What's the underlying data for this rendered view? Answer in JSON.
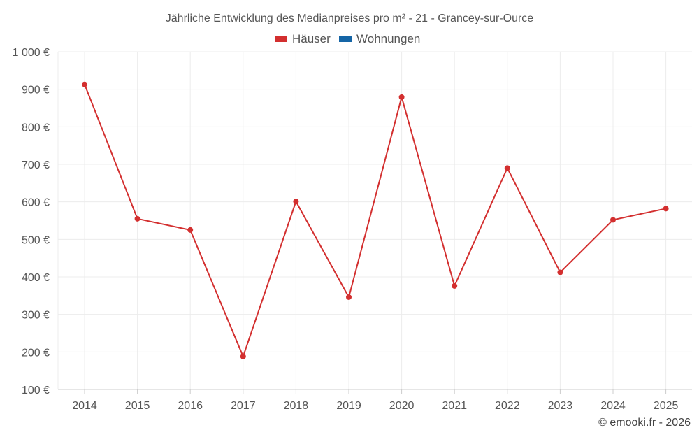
{
  "chart_data": {
    "type": "line",
    "title": "Jährliche Entwicklung des Medianpreises pro m² - 21 - Grancey-sur-Ource",
    "legend": [
      {
        "name": "Häuser",
        "color": "#d32f2f"
      },
      {
        "name": "Wohnungen",
        "color": "#1565a6"
      }
    ],
    "legend_position": "top-center",
    "grid": true,
    "x": [
      "2014",
      "2015",
      "2016",
      "2017",
      "2018",
      "2019",
      "2020",
      "2021",
      "2022",
      "2023",
      "2024",
      "2025"
    ],
    "ylim": [
      100,
      1000
    ],
    "yticks": [
      100,
      200,
      300,
      400,
      500,
      600,
      700,
      800,
      900,
      1000
    ],
    "ytick_labels": [
      "100 €",
      "200 €",
      "300 €",
      "400 €",
      "500 €",
      "600 €",
      "700 €",
      "800 €",
      "900 €",
      "1 000 €"
    ],
    "series": [
      {
        "name": "Häuser",
        "color": "#d32f2f",
        "values": [
          913,
          555,
          525,
          188,
          601,
          346,
          879,
          376,
          690,
          412,
          552,
          582
        ]
      }
    ]
  },
  "credit": "© emooki.fr - 2026"
}
